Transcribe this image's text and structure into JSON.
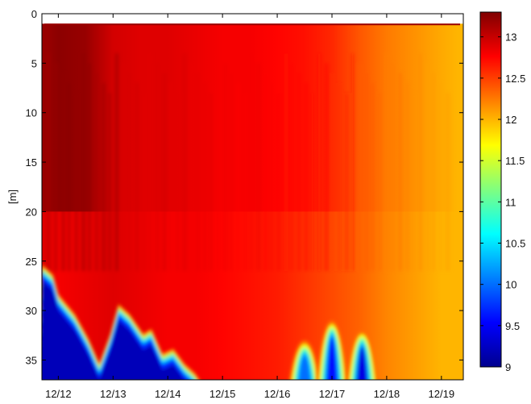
{
  "chart_data": {
    "type": "heatmap",
    "title": "",
    "xlabel": "",
    "ylabel": "[m]",
    "x_dates": [
      "12/12",
      "12/13",
      "12/14",
      "12/15",
      "12/16",
      "12/17",
      "12/18",
      "12/19"
    ],
    "x_ticks": [
      "12/12",
      "12/13",
      "12/14",
      "12/15",
      "12/16",
      "12/17",
      "12/18",
      "12/19"
    ],
    "xlim": [
      "12/11.7",
      "12/19.4"
    ],
    "y_ticks": [
      "0",
      "5",
      "10",
      "15",
      "20",
      "25",
      "30",
      "35"
    ],
    "ylim": [
      0,
      37
    ],
    "y_reversed": true,
    "colorbar": {
      "ticks": [
        "9",
        "9.5",
        "10",
        "10.5",
        "11",
        "11.5",
        "12",
        "12.5",
        "13"
      ],
      "range": [
        9,
        13.3
      ],
      "colormap": "jet"
    },
    "surface_depth": 1,
    "series": [
      {
        "x": [
          "12/11.8",
          "12/12",
          "12/12.5",
          "12/13",
          "12/13.5",
          "12/14",
          "12/14.5",
          "12/15",
          "12/15.5",
          "12/16",
          "12/16.5",
          "12/17",
          "12/17.5",
          "12/18",
          "12/18.5",
          "12/19",
          "12/19.3"
        ],
        "upper_temperature": [
          13.2,
          13.25,
          13.2,
          12.95,
          12.9,
          12.9,
          12.85,
          12.8,
          12.8,
          12.75,
          12.7,
          12.6,
          12.4,
          12.25,
          12.15,
          12.05,
          12.0
        ],
        "lower_temperature": [
          12.9,
          12.8,
          12.85,
          12.9,
          12.85,
          12.8,
          12.8,
          12.75,
          12.7,
          12.65,
          12.55,
          12.45,
          12.35,
          12.2,
          12.1,
          12.0,
          12.0
        ]
      }
    ],
    "cold_layer": {
      "x": [
        "12/11.7",
        "12/11.9",
        "12/12",
        "12/12.3",
        "12/12.55",
        "12/12.75",
        "12/12.95",
        "12/13.1",
        "12/13.3",
        "12/13.55",
        "12/13.7",
        "12/13.9",
        "12/14.1",
        "12/14.3",
        "12/14.5"
      ],
      "boundary_depth": [
        26,
        27,
        29,
        31,
        33.5,
        36,
        33,
        30,
        31,
        33,
        32.5,
        35,
        34.5,
        36,
        37
      ],
      "minimum_temperature": 9.2
    },
    "cold_intrusions": [
      {
        "x": "12/16.5",
        "depth": 33,
        "minimum_temperature": 10.0
      },
      {
        "x": "12/17.0",
        "depth": 31,
        "minimum_temperature": 9.6
      },
      {
        "x": "12/17.55",
        "depth": 32,
        "minimum_temperature": 9.4
      }
    ]
  }
}
